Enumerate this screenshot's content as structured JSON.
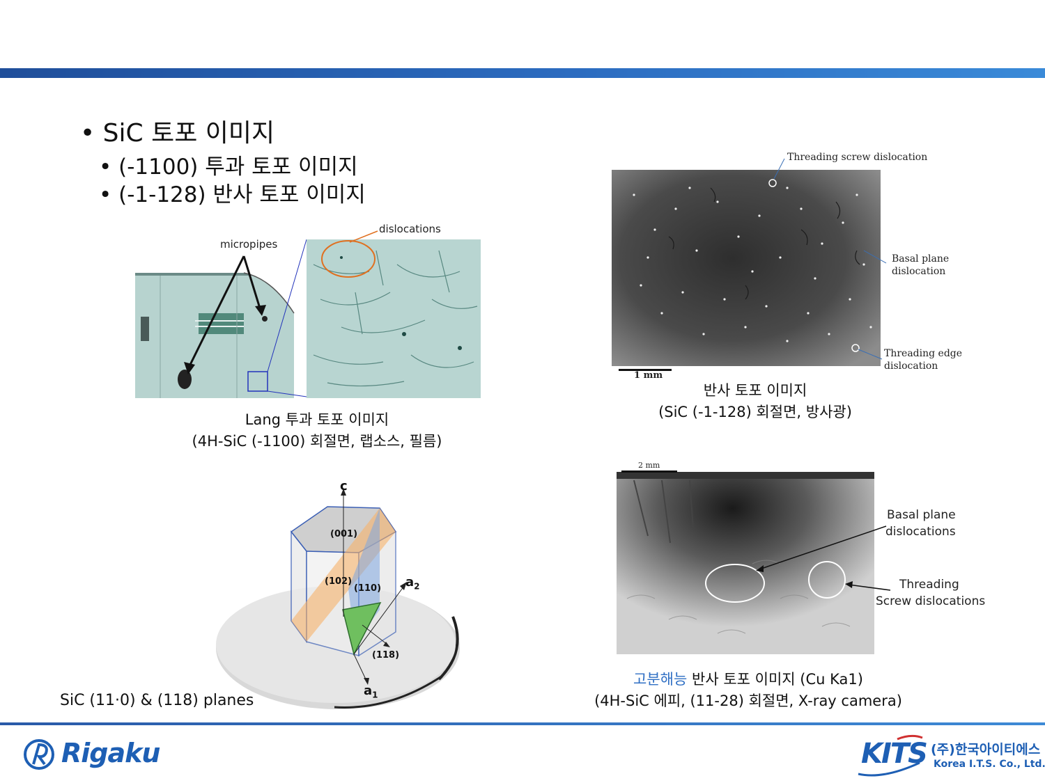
{
  "bullets": {
    "main": "• SiC 토포 이미지",
    "sub1": "• (-1100) 투과 토포 이미지",
    "sub2": "• (-1-128) 반사 토포 이미지"
  },
  "lang_figure": {
    "label_micropipes": "micropipes",
    "label_dislocations": "dislocations",
    "caption_line1": "Lang 투과 토포 이미지",
    "caption_line2": "(4H-SiC (-1100) 회절면, 랩소스, 필름)"
  },
  "reflection_figure": {
    "label_tsd": "Threading screw dislocation",
    "label_bpd_1": "Basal plane",
    "label_bpd_2": "dislocation",
    "label_ted_1": "Threading edge",
    "label_ted_2": "dislocation",
    "scale": "1 mm",
    "caption_line1": "반사 토포 이미지",
    "caption_line2": "(SiC (-1-128) 회절면, 방사광)"
  },
  "crystal_figure": {
    "axis_c": "c",
    "axis_a2": "a",
    "axis_a2_sub": "2",
    "axis_a1": "a",
    "axis_a1_sub": "1",
    "plane_001": "(001)",
    "plane_102": "(102)",
    "plane_110": "(110)",
    "plane_118": "(118)",
    "caption": "SiC (11·0) & (118) planes"
  },
  "hires_figure": {
    "scale": "2 mm",
    "label_bpd_1": "Basal plane",
    "label_bpd_2": "dislocations",
    "label_tsd_1": "Threading",
    "label_tsd_2": "Screw dislocations",
    "caption_highlight": "고분해능",
    "caption_line1_rest": " 반사 토포 이미지 (Cu Ka1)",
    "caption_line2": "(4H-SiC 에피, (11-28) 회절면, X-ray camera)"
  },
  "footer": {
    "rigaku_logo": "Rigaku",
    "kits_logo": "KITS",
    "kits_korean": "(주)한국아이티에스",
    "kits_english": "Korea I.T.S. Co., Ltd."
  },
  "colors": {
    "accent_blue": "#2c6cc0",
    "highlight_caption": "#2f6fc4",
    "logo_blue": "#1e5fb4"
  }
}
